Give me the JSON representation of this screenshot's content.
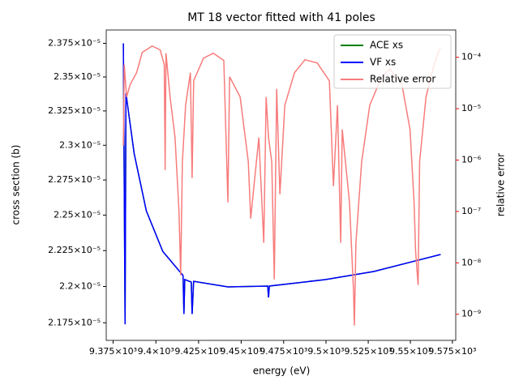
{
  "chart_data": {
    "type": "line",
    "title": "MT 18 vector fitted with 41 poles",
    "xlabel": "energy (eV)",
    "ylabel": "cross section (b)",
    "y2label": "relative error",
    "ylabel_color": "#0000ff",
    "y2label_color": "#ff0000",
    "xscale": "log",
    "yscale": "log",
    "y2scale": "log",
    "xlim": [
      9371,
      9577
    ],
    "ylim": [
      2.163e-05,
      2.385e-05
    ],
    "y2lim": [
      3.1e-10,
      0.00034
    ],
    "xticks": [
      {
        "value": 9375,
        "label": "9.375×10³"
      },
      {
        "value": 9400,
        "label": "9.4×10³"
      },
      {
        "value": 9425,
        "label": "9.425×10³"
      },
      {
        "value": 9450,
        "label": "9.45×10³"
      },
      {
        "value": 9475,
        "label": "9.475×10³"
      },
      {
        "value": 9500,
        "label": "9.5×10³"
      },
      {
        "value": 9525,
        "label": "9.525×10³"
      },
      {
        "value": 9550,
        "label": "9.55×10³"
      },
      {
        "value": 9575,
        "label": "9.575×10³"
      }
    ],
    "yticks": [
      {
        "value": 2.175e-05,
        "label": "2.175×10⁻⁵"
      },
      {
        "value": 2.2e-05,
        "label": "2.2×10⁻⁵"
      },
      {
        "value": 2.225e-05,
        "label": "2.225×10⁻⁵"
      },
      {
        "value": 2.25e-05,
        "label": "2.25×10⁻⁵"
      },
      {
        "value": 2.275e-05,
        "label": "2.275×10⁻⁵"
      },
      {
        "value": 2.3e-05,
        "label": "2.3×10⁻⁵"
      },
      {
        "value": 2.325e-05,
        "label": "2.325×10⁻⁵"
      },
      {
        "value": 2.35e-05,
        "label": "2.35×10⁻⁵"
      },
      {
        "value": 2.375e-05,
        "label": "2.375×10⁻⁵"
      }
    ],
    "y2ticks": [
      {
        "value": 1e-09,
        "label": "10⁻⁹"
      },
      {
        "value": 1e-08,
        "label": "10⁻⁸"
      },
      {
        "value": 1e-07,
        "label": "10⁻⁷"
      },
      {
        "value": 1e-06,
        "label": "10⁻⁶"
      },
      {
        "value": 1e-05,
        "label": "10⁻⁵"
      },
      {
        "value": 0.0001,
        "label": "10⁻⁴"
      }
    ],
    "legend": "upper right",
    "series": [
      {
        "name": "ACE xs",
        "color": "#008000",
        "x": [
          9381.0,
          9382.0,
          9382.5,
          9387.3,
          9394.4,
          9404.0,
          9415.9,
          9416.4,
          9416.9,
          9420.7,
          9421.2,
          9422.1,
          9442.2,
          9465.6,
          9466.1,
          9466.6,
          9499.6,
          9528.3,
          9568.0
        ],
        "values": [
          2.375e-05,
          2.174e-05,
          2.338e-05,
          2.294e-05,
          2.253e-05,
          2.2245e-05,
          2.2076e-05,
          2.181e-05,
          2.2048e-05,
          2.2031e-05,
          2.181e-05,
          2.2036e-05,
          2.1997e-05,
          2.2003e-05,
          2.1924e-05,
          2.2003e-05,
          2.2048e-05,
          2.2104e-05,
          2.2223e-05
        ]
      },
      {
        "name": "VF xs",
        "color": "#0000ff",
        "x": [
          9381.0,
          9382.0,
          9382.5,
          9387.3,
          9394.4,
          9404.0,
          9415.9,
          9416.4,
          9416.9,
          9420.7,
          9421.2,
          9422.1,
          9442.2,
          9465.6,
          9466.1,
          9466.6,
          9499.6,
          9528.3,
          9568.0
        ],
        "values": [
          2.375e-05,
          2.174e-05,
          2.338e-05,
          2.294e-05,
          2.253e-05,
          2.2245e-05,
          2.2076e-05,
          2.181e-05,
          2.2048e-05,
          2.2031e-05,
          2.181e-05,
          2.2036e-05,
          2.1997e-05,
          2.2003e-05,
          2.1924e-05,
          2.2003e-05,
          2.2048e-05,
          2.2104e-05,
          2.2223e-05
        ]
      },
      {
        "name": "Relative error",
        "color": "#f87c7c",
        "axis": "y2",
        "x": [
          9381.0,
          9381.5,
          9382.9,
          9384.9,
          9388.7,
          9392.0,
          9397.8,
          9402.5,
          9404.9,
          9405.4,
          9405.9,
          9408.3,
          9411.2,
          9413.5,
          9414.5,
          9415.5,
          9417.4,
          9420.2,
          9421.2,
          9422.1,
          9427.9,
          9433.6,
          9439.8,
          9442.2,
          9443.2,
          9449.4,
          9454.2,
          9455.6,
          9457.5,
          9460.4,
          9463.3,
          9464.7,
          9466.1,
          9468.0,
          9469.5,
          9470.9,
          9472.8,
          9475.7,
          9481.4,
          9487.6,
          9494.8,
          9502.0,
          9504.4,
          9506.8,
          9508.7,
          9509.6,
          9513.9,
          9516.3,
          9516.8,
          9517.7,
          9521.1,
          9525.9,
          9533.0,
          9537.8,
          9545.0,
          9549.8,
          9552.2,
          9553.1,
          9554.6,
          9555.5,
          9559.3,
          9564.1,
          9566.5,
          9567.9
        ],
        "values": [
          1.91e-06,
          7.21e-05,
          1.69e-05,
          2.91e-05,
          5.01e-05,
          0.000124,
          0.000166,
          0.000139,
          7.21e-05,
          6.42e-07,
          0.00012,
          1.69e-05,
          2.74e-06,
          1.04e-07,
          5.71e-09,
          9.23e-07,
          1.17e-05,
          5.01e-05,
          4.47e-07,
          3.49e-05,
          9.64e-05,
          0.00012,
          8.65e-05,
          1.5e-07,
          4.18e-05,
          1.69e-05,
          9.23e-07,
          7.26e-08,
          3.1e-07,
          2.74e-06,
          2.44e-08,
          1.69e-05,
          2.74e-06,
          9.23e-07,
          4.77e-09,
          2.43e-05,
          2.16e-07,
          1.17e-05,
          5.01e-05,
          8.97e-05,
          7.76e-05,
          3.49e-05,
          3.1e-07,
          1.17e-05,
          2.44e-08,
          3.95e-06,
          1.5e-07,
          2.77e-09,
          6.01e-10,
          2.44e-08,
          9.23e-07,
          1.17e-05,
          4.18e-05,
          6.01e-05,
          2.91e-05,
          3.95e-06,
          1.5e-07,
          1.7e-08,
          3.7e-09,
          9.23e-07,
          1.69e-05,
          7.21e-05,
          0.000124,
          0.000149
        ]
      }
    ]
  }
}
